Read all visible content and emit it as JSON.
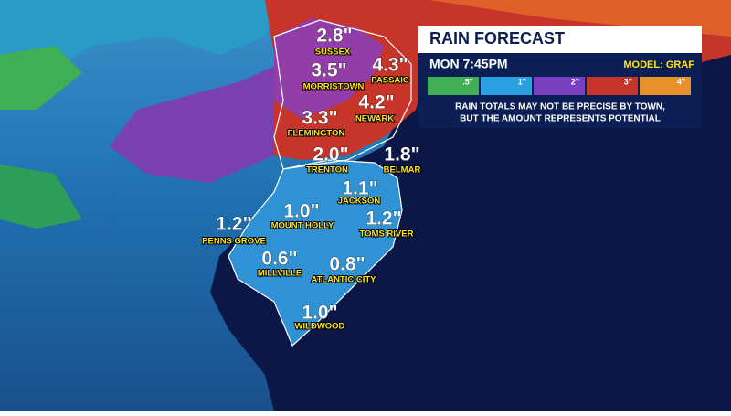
{
  "header": {
    "title": "RAIN FORECAST",
    "time": "MON 7:45PM",
    "model": "MODEL: GRAF"
  },
  "legend": {
    "labels": [
      ".5\"",
      "1\"",
      "2\"",
      "3\"",
      "4\""
    ]
  },
  "disclaimer": [
    "RAIN TOTALS MAY NOT BE PRECISE BY TOWN,",
    "BUT THE AMOUNT REPRESENTS POTENTIAL"
  ],
  "towns": [
    {
      "name": "SUSSEX",
      "amount": "2.8\""
    },
    {
      "name": "MORRISTOWN",
      "amount": "3.5\""
    },
    {
      "name": "PASSAIC",
      "amount": "4.3\""
    },
    {
      "name": "NEWARK",
      "amount": "4.2\""
    },
    {
      "name": "FLEMINGTON",
      "amount": "3.3\""
    },
    {
      "name": "TRENTON",
      "amount": "2.0\""
    },
    {
      "name": "BELMAR",
      "amount": "1.8\""
    },
    {
      "name": "JACKSON",
      "amount": "1.1\""
    },
    {
      "name": "MOUNT HOLLY",
      "amount": "1.0\""
    },
    {
      "name": "TOMS RIVER",
      "amount": "1.2\""
    },
    {
      "name": "PENNS GROVE",
      "amount": "1.2\""
    },
    {
      "name": "MILLVILLE",
      "amount": "0.6\""
    },
    {
      "name": "ATLANTIC CITY",
      "amount": "0.8\""
    },
    {
      "name": "WILDWOOD",
      "amount": "1.0\""
    }
  ]
}
